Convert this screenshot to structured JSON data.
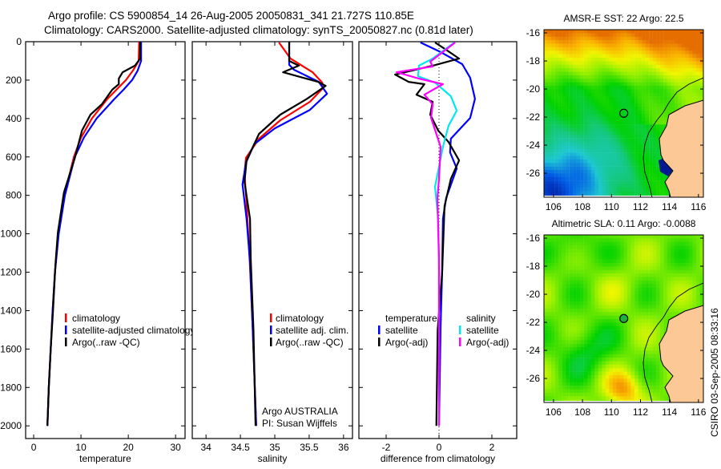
{
  "header": {
    "title_line1": "Argo profile: CS 5900854_14 26-Aug-2005 20050831_341 21.727S 110.85E",
    "title_line2": "Climatology: CARS2000. Satellite-adjusted climatology: synTS_20050827.nc (0.81d later)"
  },
  "footer_stamp": "CSIRO 03-Sep-2005 08:33:16",
  "colors": {
    "red": "#ff0000",
    "blue": "#0000ff",
    "black": "#000000",
    "cyan": "#00e8f0",
    "magenta": "#ff00ff",
    "land": "#fcc896"
  },
  "chart_data": [
    {
      "type": "line",
      "id": "temperature",
      "xlabel": "temperature",
      "ylabel": "",
      "xlim": [
        -1.7,
        32
      ],
      "ylim": [
        2066,
        0
      ],
      "xticks": [
        0,
        10,
        20,
        30
      ],
      "yticks": [
        0,
        200,
        400,
        600,
        800,
        1000,
        1200,
        1400,
        1600,
        1800,
        2000
      ],
      "legend": [
        "climatology",
        "satellite-adjusted climatology",
        "Argo(..raw -QC)"
      ],
      "series": [
        {
          "name": "climatology",
          "color": "#ff0000",
          "depth": [
            0,
            100,
            150,
            200,
            250,
            300,
            400,
            500,
            600,
            800,
            1000,
            1200,
            1400,
            1600,
            1800,
            2000
          ],
          "values": [
            22.3,
            22.2,
            21.0,
            19.5,
            17.5,
            15.5,
            12.3,
            10.0,
            8.5,
            6.5,
            5.2,
            4.5,
            4.0,
            3.6,
            3.2,
            2.9
          ]
        },
        {
          "name": "satellite-adjusted climatology",
          "color": "#0000ff",
          "depth": [
            0,
            100,
            150,
            200,
            250,
            300,
            400,
            500,
            600,
            800,
            1000,
            1200,
            1400,
            1600,
            1800,
            2000
          ],
          "values": [
            22.7,
            22.7,
            22.0,
            20.8,
            19.0,
            17.0,
            13.3,
            10.6,
            8.7,
            6.6,
            5.3,
            4.5,
            4.0,
            3.6,
            3.2,
            2.9
          ]
        },
        {
          "name": "Argo(..raw -QC)",
          "color": "#000000",
          "depth": [
            0,
            88,
            125,
            159,
            192,
            221,
            250,
            326,
            380,
            463,
            605,
            785,
            994,
            1160,
            1400,
            1600,
            1800,
            2000
          ],
          "values": [
            22.5,
            22.5,
            21.4,
            18.8,
            18.0,
            18.0,
            16.6,
            14.4,
            12.0,
            10.2,
            8.7,
            6.4,
            5.1,
            4.6,
            4.1,
            3.6,
            3.2,
            2.9
          ]
        }
      ]
    },
    {
      "type": "line",
      "id": "salinity",
      "xlabel": "salinity",
      "xlim": [
        33.8,
        36.13
      ],
      "ylim": [
        2066,
        0
      ],
      "xticks": [
        34,
        34.5,
        35,
        35.5,
        36
      ],
      "xtick_labels": [
        "34",
        "34.5",
        "35",
        "35.5",
        "36"
      ],
      "legend": [
        "climatology",
        "satellite adj. clim.",
        "Argo(..raw -QC)"
      ],
      "annotations": [
        "Argo AUSTRALIA",
        "PI: Susan Wijffels"
      ],
      "series": [
        {
          "name": "climatology",
          "color": "#ff0000",
          "depth": [
            4,
            88,
            159,
            213,
            242,
            313,
            409,
            505,
            605,
            689,
            840,
            1173,
            1500,
            2000
          ],
          "values": [
            35.06,
            35.23,
            35.55,
            35.69,
            35.7,
            35.51,
            35.08,
            34.77,
            34.58,
            34.56,
            34.59,
            34.64,
            34.68,
            34.73
          ]
        },
        {
          "name": "satellite adj. clim.",
          "color": "#0000ff",
          "depth": [
            0,
            120,
            146,
            209,
            271,
            355,
            451,
            534,
            630,
            743,
            923,
            1148,
            1500,
            2000
          ],
          "values": [
            35.21,
            35.21,
            35.28,
            35.64,
            35.76,
            35.51,
            35.0,
            34.7,
            34.58,
            34.53,
            34.59,
            34.64,
            34.68,
            34.73
          ]
        },
        {
          "name": "Argo(..raw -QC)",
          "color": "#000000",
          "depth": [
            0,
            100,
            125,
            159,
            209,
            230,
            297,
            380,
            480,
            618,
            730,
            923,
            1131,
            1500,
            2000
          ],
          "values": [
            35.21,
            35.21,
            35.35,
            35.12,
            35.63,
            35.74,
            35.47,
            35.08,
            34.77,
            34.59,
            34.56,
            34.64,
            34.65,
            34.69,
            34.72
          ]
        }
      ]
    },
    {
      "type": "line",
      "id": "difference",
      "xlabel": "difference from climatology",
      "xlim": [
        -3.03,
        2.94
      ],
      "ylim": [
        2066,
        0
      ],
      "xticks": [
        -2,
        0,
        2
      ],
      "legend_groups": [
        {
          "title": "temperature",
          "items": [
            "satellite",
            "Argo(-adj)"
          ]
        },
        {
          "title": "salinity",
          "items": [
            "satellite",
            "Argo(-adj)"
          ]
        }
      ],
      "series": [
        {
          "name": "temperature satellite",
          "color": "#0000ff",
          "depth": [
            4,
            54,
            117,
            188,
            297,
            397,
            505,
            576,
            660,
            814,
            923,
            1202,
            1482,
            2000
          ],
          "values": [
            -0.7,
            0.06,
            0.88,
            1.18,
            1.36,
            1.18,
            0.45,
            0.42,
            0.67,
            0.27,
            0.15,
            0.12,
            0.06,
            0.0
          ]
        },
        {
          "name": "temperature Argo(-adj)",
          "color": "#000000",
          "depth": [
            4,
            42,
            88,
            125,
            171,
            209,
            221,
            276,
            313,
            380,
            463,
            522,
            618,
            714,
            856,
            1202,
            1500,
            2000
          ],
          "values": [
            -0.15,
            0.27,
            0.76,
            -0.24,
            -1.66,
            -1.15,
            -0.55,
            -0.85,
            -0.24,
            -0.33,
            -0.03,
            0.36,
            0.76,
            0.45,
            0.21,
            0.12,
            -0.05,
            -0.1
          ]
        },
        {
          "name": "salinity satellite",
          "color": "#00e8f0",
          "depth": [
            4,
            88,
            125,
            180,
            213,
            284,
            359,
            438,
            547,
            756,
            923,
            1202,
            2000
          ],
          "values": [
            0.58,
            -0.24,
            -0.76,
            -0.79,
            -0.15,
            0.45,
            0.67,
            0.36,
            0.15,
            -0.15,
            -0.03,
            0.0,
            0.0
          ]
        },
        {
          "name": "salinity Argo(-adj)",
          "color": "#ff00ff",
          "depth": [
            4,
            104,
            129,
            159,
            192,
            221,
            276,
            326,
            397,
            547,
            714,
            814,
            1131,
            2000
          ],
          "values": [
            0.61,
            -0.33,
            -0.24,
            -1.6,
            -0.76,
            0.15,
            -0.55,
            -0.24,
            -0.3,
            0.06,
            0.0,
            -0.06,
            0.0,
            0.0
          ]
        }
      ]
    }
  ],
  "maps": [
    {
      "id": "sst",
      "title": "AMSR-E SST: 22 Argo: 22.5",
      "xticks": [
        106,
        108,
        110,
        112,
        114,
        116
      ],
      "yticks": [
        -16,
        -18,
        -20,
        -22,
        -24,
        -26
      ],
      "lon_range": [
        105.34,
        116.34
      ],
      "lat_range": [
        -15.77,
        -27.71
      ],
      "argo_lon": 110.85,
      "argo_lat": -21.727
    },
    {
      "id": "sla",
      "title": "Altimetric SLA: 0.11 Argo: -0.0088",
      "xticks": [
        106,
        108,
        110,
        112,
        114,
        116
      ],
      "yticks": [
        -16,
        -18,
        -20,
        -22,
        -24,
        -26
      ],
      "lon_range": [
        105.34,
        116.34
      ],
      "lat_range": [
        -15.77,
        -27.71
      ],
      "argo_lon": 110.85,
      "argo_lat": -21.727
    }
  ]
}
